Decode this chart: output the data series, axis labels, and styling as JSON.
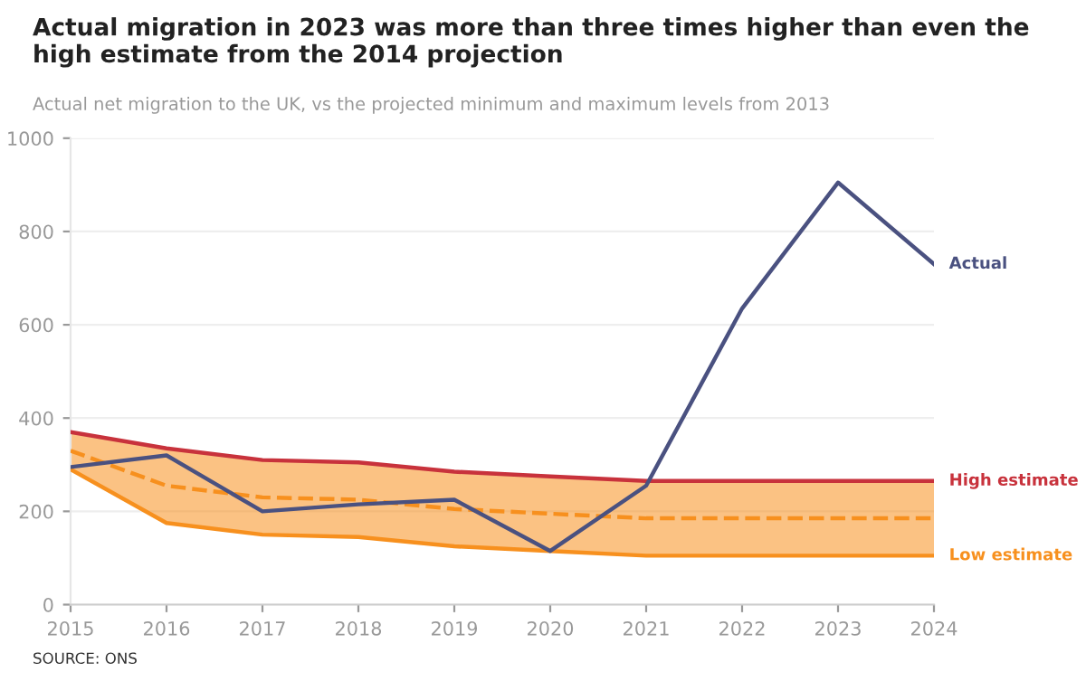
{
  "chart_data": {
    "type": "line",
    "title": "Actual migration in 2023 was more than three times higher than even the high estimate from the 2014 projection",
    "subtitle": "Actual net migration to the UK, vs the projected minimum and maximum levels from 2013",
    "annotations": [
      "SOURCE: ONS"
    ],
    "x": [
      2015,
      2016,
      2017,
      2018,
      2019,
      2020,
      2021,
      2022,
      2023,
      2024
    ],
    "series": [
      {
        "color": "#f7901e",
        "line_style": "dashed",
        "values": [
          330,
          255,
          230,
          225,
          205,
          195,
          185,
          185,
          185,
          185
        ],
        "lower": [
          290,
          175,
          150,
          145,
          125,
          115,
          105,
          105,
          105,
          105
        ],
        "upper": [
          370,
          335,
          310,
          305,
          285,
          275,
          265,
          265,
          265,
          265
        ]
      },
      {
        "name": "High estimate",
        "color": "#c8323c",
        "values": [
          370,
          335,
          310,
          305,
          285,
          275,
          265,
          265,
          265,
          265
        ]
      },
      {
        "name": "Low estimate",
        "color": "#f7901e",
        "values": [
          290,
          175,
          150,
          145,
          125,
          115,
          105,
          105,
          105,
          105
        ]
      },
      {
        "name": "Actual",
        "color": "#4a5180",
        "values": [
          295,
          320,
          200,
          215,
          225,
          115,
          255,
          635,
          905,
          730
        ]
      }
    ],
    "xlim": [
      2015,
      2024
    ],
    "xticks": [
      2015,
      2016,
      2017,
      2018,
      2019,
      2020,
      2021,
      2022,
      2023,
      2024
    ],
    "ylim": [
      0,
      1000
    ],
    "yticks": [
      0,
      200,
      400,
      600,
      800,
      1000
    ],
    "grid": "y",
    "line_style": "solid"
  }
}
